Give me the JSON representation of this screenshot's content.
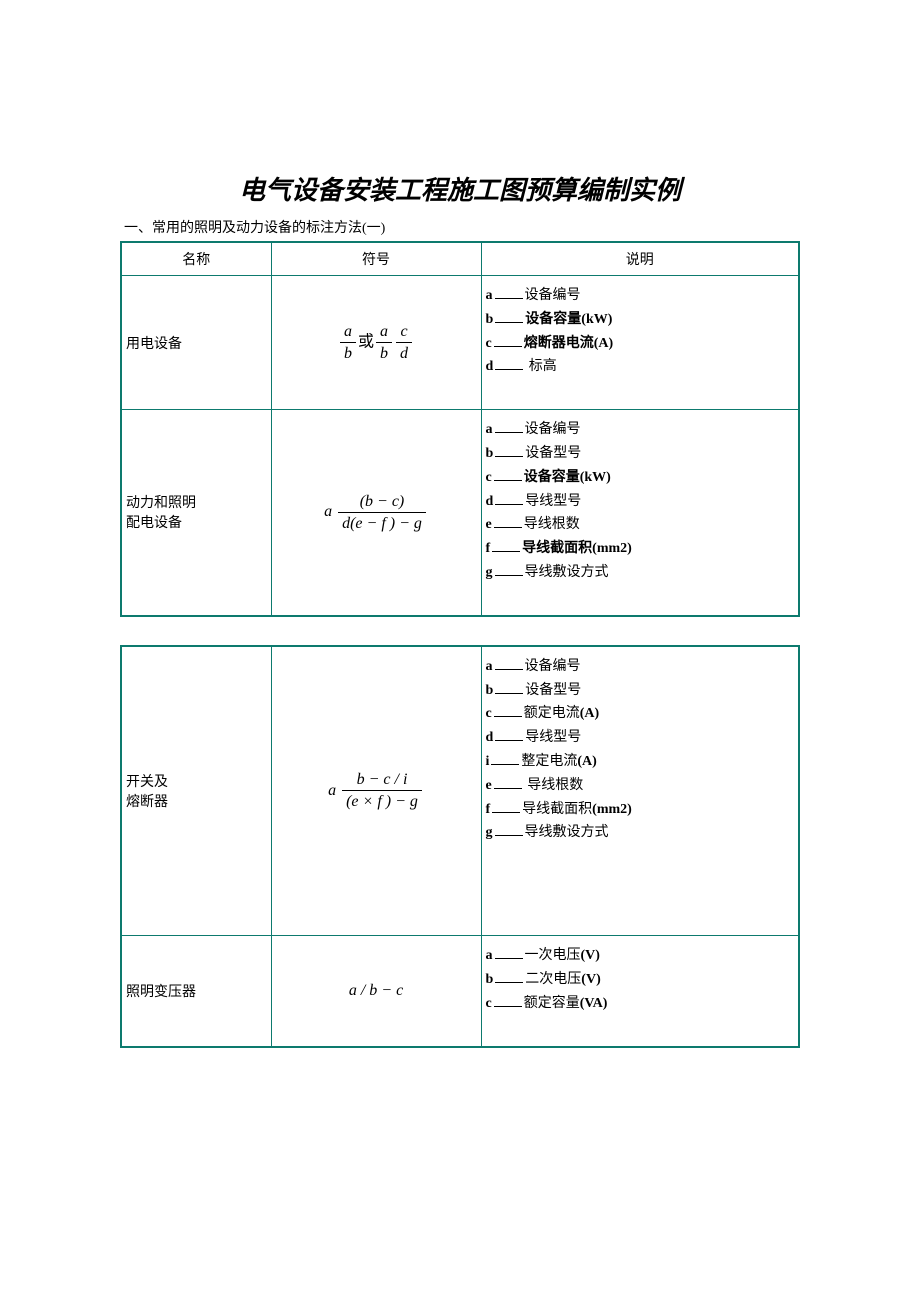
{
  "title": "电气设备安装工程施工图预算编制实例",
  "subtitle": "一、常用的照明及动力设备的标注方法(一)",
  "headers": {
    "name": "名称",
    "symbol": "符号",
    "desc": "说明"
  },
  "table1": {
    "border_color": "#0d7a6e",
    "rows": [
      {
        "name": "用电设备",
        "symbol_html": "frac_a_b_or_ac_bd",
        "desc": [
          {
            "key": "a",
            "label": "设备编号",
            "bold": false
          },
          {
            "key": "b",
            "label": "设备容量(kW)",
            "bold": true
          },
          {
            "key": "c",
            "label": "熔断器电流(A)",
            "bold": true
          },
          {
            "key": "d",
            "label": " 标高",
            "bold": false
          }
        ]
      },
      {
        "name_line1": "动力和照明",
        "name_line2": "配电设备",
        "symbol_html": "a_bc_over_def_g",
        "desc": [
          {
            "key": "a",
            "label": "设备编号",
            "bold": false
          },
          {
            "key": "b",
            "label": "设备型号",
            "bold": false
          },
          {
            "key": "c",
            "label": "设备容量(kW)",
            "bold": true
          },
          {
            "key": "d",
            "label": "导线型号",
            "bold": false
          },
          {
            "key": "e",
            "label": "导线根数",
            "bold": false
          },
          {
            "key": "f",
            "label": "导线截面积(mm2)",
            "bold": true
          },
          {
            "key": "g",
            "label": "导线敷设方式",
            "bold": false
          }
        ]
      }
    ]
  },
  "table2": {
    "rows": [
      {
        "name_line1": "开关及",
        "name_line2": "熔断器",
        "symbol_html": "a_bci_over_ef_g",
        "desc": [
          {
            "key": "a",
            "label": "设备编号",
            "bold": false
          },
          {
            "key": "b",
            "label": "设备型号",
            "bold": false
          },
          {
            "key": "c",
            "label": "额定电流(A)",
            "bold_paren": true
          },
          {
            "key": "d",
            "label": "导线型号",
            "bold": false
          },
          {
            "key": "i",
            "label": "整定电流(A)",
            "bold_paren": true
          },
          {
            "key": "e",
            "label": " 导线根数",
            "bold": false
          },
          {
            "key": "f",
            "label": "导线截面积(mm2)",
            "bold_paren": true
          },
          {
            "key": "g",
            "label": "导线敷设方式",
            "bold": false
          }
        ],
        "tall": true
      },
      {
        "name": "照明变压器",
        "symbol_html": "a_over_b_minus_c",
        "desc": [
          {
            "key": "a",
            "label": "一次电压(V)",
            "bold_paren": true
          },
          {
            "key": "b",
            "label": "二次电压(V)",
            "bold_paren": true
          },
          {
            "key": "c",
            "label": "额定容量(VA)",
            "bold_paren": true
          }
        ]
      }
    ]
  },
  "symbols": {
    "or_text": "或"
  },
  "fonts": {
    "title_size": 26,
    "body_size": 14,
    "symbol_size": 16
  }
}
